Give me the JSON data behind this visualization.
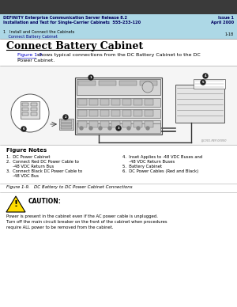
{
  "header_bg": "#add8e6",
  "header_dark_bg": "#2a2a2a",
  "header_text1": "DEFINITY Enterprise Communication Server Release 8.2",
  "header_text2": "Installation and Test for Single-Carrier Cabinets  555-233-120",
  "header_right1": "Issue 1",
  "header_right2": "April 2000",
  "nav_text1": "1   Install and Connect the Cabinets",
  "nav_text2": "    Connect Battery Cabinet",
  "nav_right": "1-18",
  "section_title": "Connect Battery Cabinet",
  "figure_link": "Figure 1-9",
  "body_rest": " shows typical connections from the DC Battery Cabinet to the DC",
  "body_line2": "Power Cabinet.",
  "figure_notes_title": "Figure Notes",
  "figure_caption": "Figure 1-9.   DC Battery to DC Power Cabinet Connections",
  "caution_title": "CAUTION:",
  "caution_lines": [
    "Power is present in the cabinet even if the AC power cable is unplugged.",
    "Turn off the main circuit breaker on the front of the cabinet when procedures",
    "require ALL power to be removed from the cabinet."
  ],
  "left_notes": [
    "1.  DC Power Cabinet",
    "2.  Connect Red DC Power Cable to",
    "     -48 VDC Return Bus",
    "3.  Connect Black DC Power Cable to",
    "     -48 VDC Bus"
  ],
  "right_notes": [
    "4.  Inset Applies to -48 VDC Buses and",
    "     -48 VDC Return Buses",
    "5.  Battery Cabinet",
    "6.  DC Power Cables (Red and Black)"
  ],
  "bg_color": "#ffffff",
  "diagram_bg": "#f0f0f0",
  "attr_text": "LJC001-REP-00000"
}
